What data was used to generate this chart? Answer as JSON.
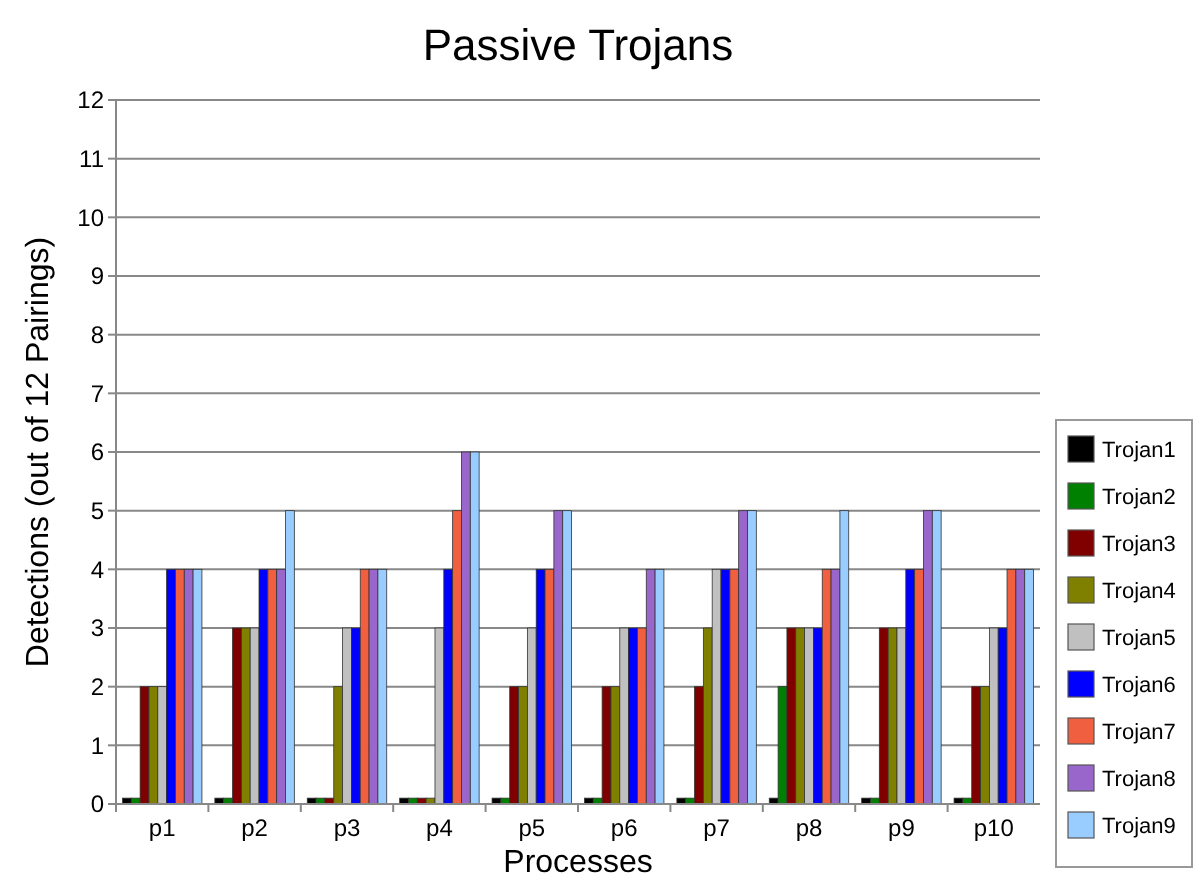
{
  "chart_data": {
    "type": "bar",
    "title": "Passive Trojans",
    "xlabel": "Processes",
    "ylabel": "Detections (out of 12 Pairings)",
    "categories": [
      "p1",
      "p2",
      "p3",
      "p4",
      "p5",
      "p6",
      "p7",
      "p8",
      "p9",
      "p10"
    ],
    "series": [
      {
        "name": "Trojan1",
        "color": "#000000",
        "values": [
          0.1,
          0.1,
          0.1,
          0.1,
          0.1,
          0.1,
          0.1,
          0.1,
          0.1,
          0.1
        ]
      },
      {
        "name": "Trojan2",
        "color": "#008000",
        "values": [
          0.1,
          0.1,
          0.1,
          0.1,
          0.1,
          0.1,
          0.1,
          2,
          0.1,
          0.1
        ]
      },
      {
        "name": "Trojan3",
        "color": "#800000",
        "values": [
          2,
          3,
          0.1,
          0.1,
          2,
          2,
          2,
          3,
          3,
          2
        ]
      },
      {
        "name": "Trojan4",
        "color": "#808000",
        "values": [
          2,
          3,
          2,
          0.1,
          2,
          2,
          3,
          3,
          3,
          2
        ]
      },
      {
        "name": "Trojan5",
        "color": "#c0c0c0",
        "values": [
          2,
          3,
          3,
          3,
          3,
          3,
          4,
          3,
          3,
          3
        ]
      },
      {
        "name": "Trojan6",
        "color": "#0000ff",
        "values": [
          4,
          4,
          3,
          4,
          4,
          3,
          4,
          3,
          4,
          3
        ]
      },
      {
        "name": "Trojan7",
        "color": "#f06040",
        "values": [
          4,
          4,
          4,
          5,
          4,
          3,
          4,
          4,
          4,
          4
        ]
      },
      {
        "name": "Trojan8",
        "color": "#9966cc",
        "values": [
          4,
          4,
          4,
          6,
          5,
          4,
          5,
          4,
          5,
          4
        ]
      },
      {
        "name": "Trojan9",
        "color": "#99ccff",
        "values": [
          4,
          5,
          4,
          6,
          5,
          4,
          5,
          5,
          5,
          4
        ]
      }
    ],
    "ylim": [
      0,
      12
    ],
    "yticks": [
      0,
      1,
      2,
      3,
      4,
      5,
      6,
      7,
      8,
      9,
      10,
      11,
      12
    ],
    "grid": "y",
    "legend": "right"
  }
}
